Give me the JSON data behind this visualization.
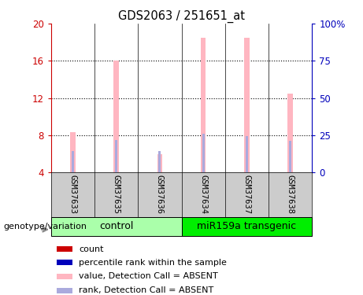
{
  "title": "GDS2063 / 251651_at",
  "samples": [
    "GSM37633",
    "GSM37635",
    "GSM37636",
    "GSM37634",
    "GSM37637",
    "GSM37638"
  ],
  "pink_bar_heights": [
    8.3,
    16.0,
    6.0,
    18.5,
    18.5,
    12.5
  ],
  "blue_bar_heights": [
    6.3,
    7.5,
    6.3,
    8.2,
    7.9,
    7.4
  ],
  "ylim_left": [
    4,
    20
  ],
  "ylim_right": [
    0,
    100
  ],
  "yticks_left": [
    4,
    8,
    12,
    16,
    20
  ],
  "yticks_right": [
    0,
    25,
    50,
    75,
    100
  ],
  "ytick_labels_left": [
    "4",
    "8",
    "12",
    "16",
    "20"
  ],
  "ytick_labels_right": [
    "0",
    "25",
    "50",
    "75",
    "100%"
  ],
  "left_axis_color": "#CC0000",
  "right_axis_color": "#0000BB",
  "pink_color": "#FFB6C1",
  "blue_color": "#AAAADD",
  "bg_color": "#FFFFFF",
  "label_area_bg": "#CCCCCC",
  "ctrl_color": "#AAFFAA",
  "mir_color": "#00EE00",
  "bar_bottom": 4.0,
  "pink_bar_width": 0.12,
  "blue_bar_width": 0.06,
  "n_ctrl": 3,
  "n_mir": 3,
  "legend_items": [
    {
      "color": "#CC0000",
      "label": "count"
    },
    {
      "color": "#0000BB",
      "label": "percentile rank within the sample"
    },
    {
      "color": "#FFB6C1",
      "label": "value, Detection Call = ABSENT"
    },
    {
      "color": "#AAAADD",
      "label": "rank, Detection Call = ABSENT"
    }
  ],
  "grid_yticks": [
    8,
    12,
    16
  ],
  "figsize": [
    4.61,
    3.75
  ],
  "dpi": 100
}
